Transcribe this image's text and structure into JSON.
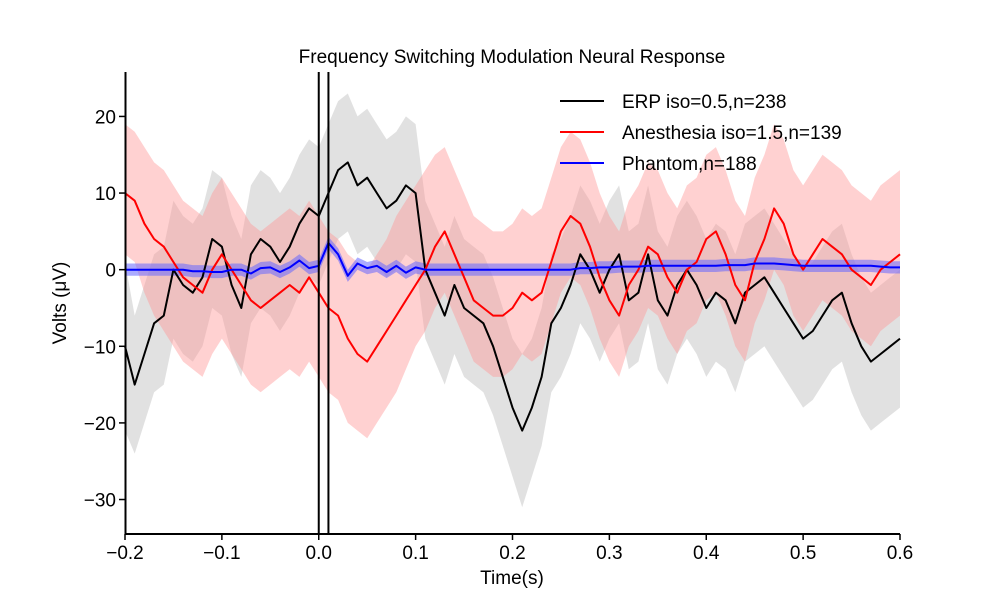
{
  "chart_data": {
    "type": "line",
    "title": "Frequency Switching Modulation Neural Response",
    "xlabel": "Time(s)",
    "ylabel": "Volts (μV)",
    "xlim": [
      -0.2,
      0.6
    ],
    "ylim": [
      -34.5,
      25.8
    ],
    "xticks": [
      -0.2,
      -0.1,
      0.0,
      0.1,
      0.2,
      0.3,
      0.4,
      0.5,
      0.6
    ],
    "xtick_labels": [
      "−0.2",
      "−0.1",
      "0.0",
      "0.1",
      "0.2",
      "0.3",
      "0.4",
      "0.5",
      "0.6"
    ],
    "yticks": [
      20,
      10,
      0,
      -10,
      -20,
      -30
    ],
    "ytick_labels": [
      "20",
      "10",
      "0",
      "−10",
      "−20",
      "−30"
    ],
    "vlines": [
      0.0,
      0.01
    ],
    "grid": false,
    "legend_position": "top-right",
    "series": [
      {
        "name": "ERP iso=0.5,n=238",
        "color": "#000000",
        "band_color": "#bdbdbd",
        "x": [
          -0.2,
          -0.19,
          -0.18,
          -0.17,
          -0.16,
          -0.15,
          -0.14,
          -0.13,
          -0.12,
          -0.11,
          -0.1,
          -0.09,
          -0.08,
          -0.07,
          -0.06,
          -0.05,
          -0.04,
          -0.03,
          -0.02,
          -0.01,
          0.0,
          0.01,
          0.02,
          0.03,
          0.04,
          0.05,
          0.06,
          0.07,
          0.08,
          0.09,
          0.1,
          0.11,
          0.12,
          0.13,
          0.14,
          0.15,
          0.16,
          0.17,
          0.18,
          0.19,
          0.2,
          0.21,
          0.22,
          0.23,
          0.24,
          0.25,
          0.26,
          0.27,
          0.28,
          0.29,
          0.3,
          0.31,
          0.32,
          0.33,
          0.34,
          0.35,
          0.36,
          0.37,
          0.38,
          0.39,
          0.4,
          0.41,
          0.42,
          0.43,
          0.44,
          0.45,
          0.46,
          0.47,
          0.48,
          0.49,
          0.5,
          0.51,
          0.52,
          0.53,
          0.54,
          0.55,
          0.56,
          0.57,
          0.58,
          0.59,
          0.6
        ],
        "mean": [
          -10,
          -15,
          -11,
          -7,
          -6,
          0,
          -2,
          -3,
          -1,
          4,
          3,
          -2,
          -5,
          2,
          4,
          3,
          1,
          3,
          6,
          8,
          7,
          10,
          13,
          14,
          11,
          12,
          10,
          8,
          9,
          11,
          10,
          0,
          -3,
          -6,
          -2,
          -5,
          -6,
          -7,
          -10,
          -14,
          -18,
          -21,
          -18,
          -14,
          -7,
          -5,
          -2,
          2,
          0,
          -3,
          0,
          2,
          -4,
          -3,
          2,
          -4,
          -6,
          -2,
          0,
          -2,
          -5,
          -3,
          -4,
          -7,
          -3,
          -2,
          -1,
          -3,
          -5,
          -7,
          -9,
          -8,
          -6,
          -4,
          -3,
          -7,
          -10,
          -12,
          -11,
          -10,
          -9
        ],
        "lower": [
          -21,
          -24,
          -20,
          -16,
          -15,
          -9,
          -11,
          -12,
          -10,
          -5,
          -6,
          -11,
          -14,
          -7,
          -5,
          -6,
          -8,
          -6,
          -3,
          -1,
          -2,
          1,
          4,
          5,
          2,
          3,
          1,
          -1,
          0,
          2,
          1,
          -9,
          -12,
          -15,
          -11,
          -14,
          -15,
          -16,
          -19,
          -23,
          -27,
          -31,
          -27,
          -23,
          -16,
          -14,
          -11,
          -7,
          -9,
          -12,
          -9,
          -7,
          -13,
          -12,
          -7,
          -13,
          -15,
          -11,
          -9,
          -11,
          -14,
          -12,
          -13,
          -16,
          -12,
          -11,
          -10,
          -12,
          -14,
          -16,
          -18,
          -17,
          -15,
          -13,
          -12,
          -16,
          -19,
          -21,
          -20,
          -19,
          -18
        ],
        "upper": [
          1,
          -6,
          -2,
          2,
          3,
          9,
          7,
          6,
          8,
          13,
          12,
          7,
          4,
          11,
          13,
          12,
          10,
          12,
          15,
          17,
          16,
          19,
          22,
          23,
          20,
          21,
          19,
          17,
          18,
          20,
          19,
          9,
          6,
          3,
          7,
          4,
          3,
          2,
          -1,
          -5,
          -9,
          -11,
          -9,
          -5,
          2,
          4,
          7,
          11,
          9,
          6,
          9,
          11,
          5,
          6,
          11,
          5,
          3,
          7,
          9,
          7,
          4,
          6,
          5,
          2,
          6,
          7,
          8,
          6,
          4,
          2,
          0,
          1,
          3,
          5,
          6,
          2,
          -1,
          -3,
          -2,
          -1,
          0
        ]
      },
      {
        "name": "Anesthesia iso=1.5,n=139",
        "color": "#ff0000",
        "band_color": "#ff9999",
        "x": [
          -0.2,
          -0.19,
          -0.18,
          -0.17,
          -0.16,
          -0.15,
          -0.14,
          -0.13,
          -0.12,
          -0.11,
          -0.1,
          -0.09,
          -0.08,
          -0.07,
          -0.06,
          -0.05,
          -0.04,
          -0.03,
          -0.02,
          -0.01,
          0.0,
          0.01,
          0.02,
          0.03,
          0.04,
          0.05,
          0.06,
          0.07,
          0.08,
          0.09,
          0.1,
          0.11,
          0.12,
          0.13,
          0.14,
          0.15,
          0.16,
          0.17,
          0.18,
          0.19,
          0.2,
          0.21,
          0.22,
          0.23,
          0.24,
          0.25,
          0.26,
          0.27,
          0.28,
          0.29,
          0.3,
          0.31,
          0.32,
          0.33,
          0.34,
          0.35,
          0.36,
          0.37,
          0.38,
          0.39,
          0.4,
          0.41,
          0.42,
          0.43,
          0.44,
          0.45,
          0.46,
          0.47,
          0.48,
          0.49,
          0.5,
          0.51,
          0.52,
          0.53,
          0.54,
          0.55,
          0.56,
          0.57,
          0.58,
          0.59,
          0.6
        ],
        "mean": [
          10,
          9,
          6,
          4,
          3,
          1,
          -1,
          -2,
          -3,
          0,
          2,
          0,
          -2,
          -4,
          -5,
          -4,
          -3,
          -2,
          -3,
          -1,
          -3,
          -5,
          -6,
          -9,
          -11,
          -12,
          -10,
          -8,
          -6,
          -4,
          -2,
          0,
          3,
          5,
          2,
          -1,
          -4,
          -5,
          -6,
          -6,
          -5,
          -3,
          -4,
          -3,
          1,
          5,
          7,
          6,
          3,
          -1,
          -4,
          -6,
          -2,
          0,
          3,
          2,
          -1,
          -3,
          0,
          1,
          4,
          5,
          2,
          -2,
          -4,
          1,
          4,
          8,
          6,
          2,
          0,
          2,
          4,
          3,
          2,
          0,
          -1,
          -2,
          0,
          1,
          2
        ],
        "lower": [
          2,
          1,
          -3,
          -6,
          -8,
          -10,
          -12,
          -13,
          -14,
          -11,
          -9,
          -11,
          -13,
          -15,
          -16,
          -15,
          -14,
          -13,
          -14,
          -12,
          -14,
          -16,
          -17,
          -20,
          -21,
          -22,
          -20,
          -18,
          -16,
          -13,
          -10,
          -8,
          -5,
          -3,
          -6,
          -9,
          -12,
          -13,
          -14,
          -14,
          -13,
          -11,
          -12,
          -11,
          -7,
          -3,
          -1,
          -2,
          -5,
          -9,
          -12,
          -14,
          -10,
          -8,
          -5,
          -6,
          -9,
          -11,
          -8,
          -7,
          -4,
          -3,
          -6,
          -10,
          -12,
          -7,
          -4,
          0,
          -2,
          -6,
          -8,
          -6,
          -4,
          -5,
          -6,
          -8,
          -9,
          -10,
          -8,
          -7,
          -6
        ],
        "upper": [
          19,
          18,
          16,
          14,
          13,
          11,
          9,
          8,
          7,
          10,
          12,
          10,
          8,
          6,
          5,
          6,
          7,
          8,
          7,
          9,
          7,
          5,
          4,
          2,
          1,
          0,
          2,
          4,
          7,
          9,
          11,
          13,
          15,
          16,
          13,
          10,
          7,
          6,
          5,
          5,
          6,
          8,
          7,
          8,
          12,
          16,
          18,
          17,
          14,
          10,
          7,
          5,
          9,
          11,
          14,
          13,
          10,
          8,
          11,
          12,
          15,
          16,
          13,
          9,
          7,
          12,
          15,
          19,
          17,
          13,
          11,
          13,
          15,
          14,
          13,
          11,
          10,
          9,
          11,
          12,
          13
        ]
      },
      {
        "name": "Phantom,n=188",
        "color": "#0000ff",
        "band_color": "#6666ff",
        "x": [
          -0.2,
          -0.19,
          -0.18,
          -0.17,
          -0.16,
          -0.15,
          -0.14,
          -0.13,
          -0.12,
          -0.11,
          -0.1,
          -0.09,
          -0.08,
          -0.07,
          -0.06,
          -0.05,
          -0.04,
          -0.03,
          -0.02,
          -0.01,
          0.0,
          0.01,
          0.02,
          0.03,
          0.04,
          0.05,
          0.06,
          0.07,
          0.08,
          0.09,
          0.1,
          0.11,
          0.12,
          0.13,
          0.14,
          0.15,
          0.16,
          0.17,
          0.18,
          0.19,
          0.2,
          0.21,
          0.22,
          0.23,
          0.24,
          0.25,
          0.26,
          0.27,
          0.28,
          0.29,
          0.3,
          0.31,
          0.32,
          0.33,
          0.34,
          0.35,
          0.36,
          0.37,
          0.38,
          0.39,
          0.4,
          0.41,
          0.42,
          0.43,
          0.44,
          0.45,
          0.46,
          0.47,
          0.48,
          0.49,
          0.5,
          0.51,
          0.52,
          0.53,
          0.54,
          0.55,
          0.56,
          0.57,
          0.58,
          0.59,
          0.6
        ],
        "mean": [
          0,
          0,
          0,
          0,
          0,
          0,
          0,
          -0.2,
          -0.2,
          -0.3,
          -0.3,
          0,
          0,
          -0.5,
          0.2,
          0.3,
          -0.3,
          0.3,
          1.2,
          0.2,
          0.5,
          3.5,
          2.0,
          -0.8,
          0.8,
          0.2,
          0.5,
          -0.3,
          0.5,
          -0.4,
          0.3,
          0,
          0,
          0,
          0,
          0,
          0,
          0,
          0,
          0,
          0,
          0,
          0,
          0,
          0,
          0,
          0,
          0.2,
          0.2,
          0.3,
          0.3,
          0.4,
          0.4,
          0.4,
          0.5,
          0.5,
          0.5,
          0.5,
          0.5,
          0.5,
          0.5,
          0.5,
          0.6,
          0.6,
          0.6,
          0.8,
          0.8,
          0.8,
          0.7,
          0.6,
          0.5,
          0.5,
          0.5,
          0.5,
          0.5,
          0.5,
          0.5,
          0.5,
          0.4,
          0.3,
          0.3
        ],
        "lower": [
          -0.8,
          -0.8,
          -0.8,
          -0.8,
          -0.8,
          -0.8,
          -0.8,
          -1.0,
          -1.0,
          -1.1,
          -1.1,
          -0.8,
          -0.8,
          -1.3,
          -0.6,
          -0.5,
          -1.1,
          -0.5,
          0.4,
          -0.6,
          -0.3,
          2.7,
          1.2,
          -1.6,
          0.0,
          -0.6,
          -0.3,
          -1.1,
          -0.3,
          -1.2,
          -0.5,
          -0.8,
          -0.8,
          -0.8,
          -0.8,
          -0.8,
          -0.8,
          -0.8,
          -0.8,
          -0.8,
          -0.8,
          -0.8,
          -0.8,
          -0.8,
          -0.8,
          -0.8,
          -0.8,
          -0.6,
          -0.6,
          -0.5,
          -0.5,
          -0.4,
          -0.4,
          -0.4,
          -0.3,
          -0.3,
          -0.3,
          -0.3,
          -0.3,
          -0.3,
          -0.3,
          -0.3,
          -0.2,
          -0.2,
          -0.2,
          0.0,
          0.0,
          0.0,
          -0.1,
          -0.2,
          -0.3,
          -0.3,
          -0.3,
          -0.3,
          -0.3,
          -0.3,
          -0.3,
          -0.3,
          -0.4,
          -0.5,
          -0.5
        ],
        "upper": [
          0.8,
          0.8,
          0.8,
          0.8,
          0.8,
          0.8,
          0.8,
          0.6,
          0.6,
          0.5,
          0.5,
          0.8,
          0.8,
          0.3,
          1.0,
          1.1,
          0.5,
          1.1,
          2.0,
          1.0,
          1.3,
          4.3,
          2.8,
          0.0,
          1.6,
          1.0,
          1.3,
          0.5,
          1.3,
          0.4,
          1.1,
          0.8,
          0.8,
          0.8,
          0.8,
          0.8,
          0.8,
          0.8,
          0.8,
          0.8,
          0.8,
          0.8,
          0.8,
          0.8,
          0.8,
          0.8,
          0.8,
          1.0,
          1.0,
          1.1,
          1.1,
          1.2,
          1.2,
          1.2,
          1.3,
          1.3,
          1.3,
          1.3,
          1.3,
          1.3,
          1.3,
          1.3,
          1.4,
          1.4,
          1.4,
          1.6,
          1.6,
          1.6,
          1.5,
          1.4,
          1.3,
          1.3,
          1.3,
          1.3,
          1.3,
          1.3,
          1.3,
          1.3,
          1.2,
          1.1,
          1.1
        ]
      }
    ]
  }
}
